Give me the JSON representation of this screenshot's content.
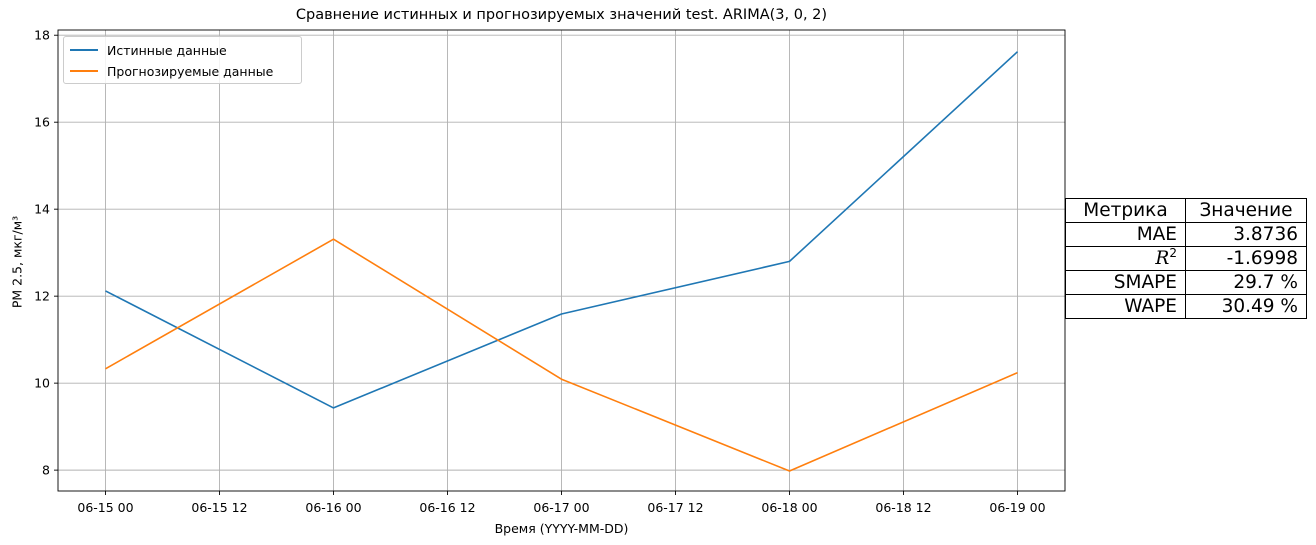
{
  "chart_data": {
    "type": "line",
    "title": "Сравнение истинных и прогнозируемых значений test. ARIMA(3, 0, 2)",
    "xlabel": "Время (YYYY-MM-DD)",
    "ylabel": "PM 2.5, мкг/м³",
    "x": [
      "2024-06-15 00:00",
      "2024-06-16 00:00",
      "2024-06-17 00:00",
      "2024-06-18 00:00",
      "2024-06-19 00:00"
    ],
    "x_ticks": [
      "06-15 00",
      "06-15 12",
      "06-16 00",
      "06-16 12",
      "06-17 00",
      "06-17 12",
      "06-18 00",
      "06-18 12",
      "06-19 00"
    ],
    "x_range": [
      "2024-06-14 19:00",
      "2024-06-19 05:00"
    ],
    "y_ticks": [
      8,
      10,
      12,
      14,
      16,
      18
    ],
    "ylim": [
      7.52,
      18.12
    ],
    "grid": true,
    "legend_position": "top-left",
    "series": [
      {
        "name": "Истинные данные",
        "color": "#1f77b4",
        "values": [
          12.12,
          9.43,
          11.59,
          12.8,
          17.62
        ]
      },
      {
        "name": "Прогнозируемые данные",
        "color": "#ff7f0e",
        "values": [
          10.33,
          13.31,
          10.09,
          7.98,
          10.24
        ]
      }
    ]
  },
  "metrics_table": {
    "headers": [
      "Метрика",
      "Значение"
    ],
    "rows": [
      {
        "metric": "MAE",
        "value": "3.8736"
      },
      {
        "metric": "R2",
        "value": "-1.6998"
      },
      {
        "metric": "SMAPE",
        "value": "29.7 %"
      },
      {
        "metric": "WAPE",
        "value": "30.49 %"
      }
    ]
  }
}
